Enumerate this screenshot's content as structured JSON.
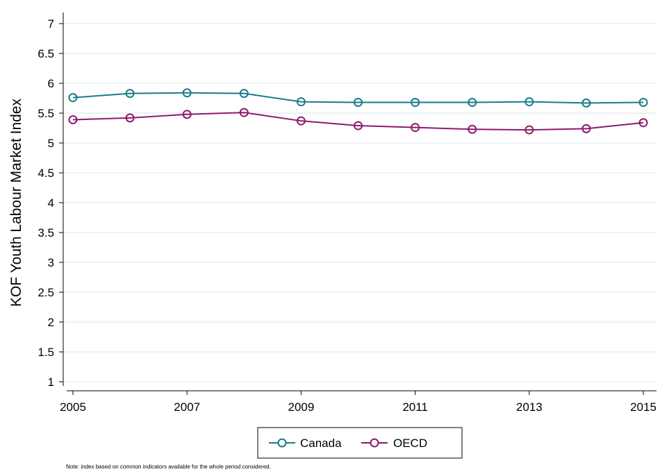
{
  "chart_data": {
    "type": "line",
    "x": [
      2005,
      2006,
      2007,
      2008,
      2009,
      2010,
      2011,
      2012,
      2013,
      2014,
      2015
    ],
    "xticks": [
      2005,
      2007,
      2009,
      2011,
      2013,
      2015
    ],
    "yticks": [
      1,
      1.5,
      2,
      2.5,
      3,
      3.5,
      4,
      4.5,
      5,
      5.5,
      6,
      6.5,
      7
    ],
    "ylim": [
      1,
      7
    ],
    "xlim": [
      2005,
      2015
    ],
    "ylabel": "KOF Youth Labour Market Index",
    "xlabel": "",
    "grid": true,
    "legend_position": "bottom",
    "series": [
      {
        "name": "Canada",
        "color": "#1a7a8c",
        "values": [
          5.76,
          5.83,
          5.84,
          5.83,
          5.69,
          5.68,
          5.68,
          5.68,
          5.69,
          5.67,
          5.68
        ]
      },
      {
        "name": "OECD",
        "color": "#8b1a6e",
        "values": [
          5.39,
          5.42,
          5.48,
          5.51,
          5.37,
          5.29,
          5.26,
          5.23,
          5.22,
          5.24,
          5.34
        ]
      }
    ]
  },
  "note": "Note: index based on common indicators available for the whole period considered."
}
